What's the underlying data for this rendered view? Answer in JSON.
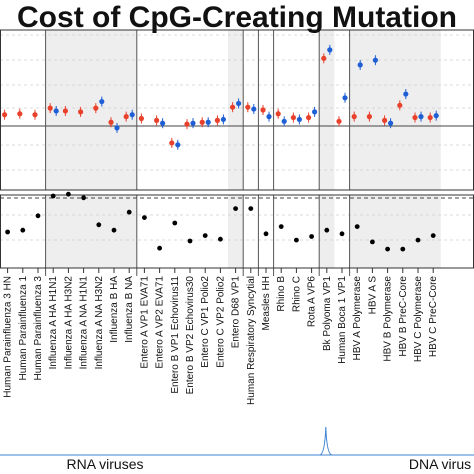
{
  "chart_data": {
    "type": "scatter",
    "title": "Cost of CpG-Creating Mutation",
    "colors": {
      "red": "#e8402a",
      "blue": "#1f5fd6",
      "black": "#000000",
      "shade": "#eeeeee",
      "grid": "#cfcfcf",
      "density": "#3b83d1"
    },
    "categories": [
      "Human Parainfluenza 3 HN",
      "Human Parainfluenza 1",
      "Human Parainfluenza 3",
      "Influenza A HA H1N1",
      "Influenza A HA H3N2",
      "Influenza A NA H1N1",
      "Influenza A NA H3N2",
      "Influenza B HA",
      "Influenza B NA",
      "Entero A VP1 EVA71",
      "Entero A VP2 EVA71",
      "Entero B VP1 Echovirus11",
      "Entero B VP2 Echovirus30",
      "Entero C VP1 Polio2",
      "Entero C VP2 Polio2",
      "Entero D68 VP1",
      "Human Respiratory Syncytial",
      "Measles HH",
      "Rhino B",
      "Rhino C",
      "Rota A VP6",
      "Bk Polyoma VP1",
      "Human Boca 1 VP1",
      "HBV A Polymerase",
      "HBV A S",
      "HBV B Polymerase",
      "HBV B PreC-Core",
      "HBV C Polymerase",
      "HBV C PreC-Core"
    ],
    "shaded_groups": [
      [
        3,
        8
      ],
      [
        15,
        15
      ],
      [
        21,
        21
      ],
      [
        23,
        28
      ]
    ],
    "group_boundaries": [
      3,
      9,
      16,
      17,
      18,
      21,
      23
    ],
    "panel_top": {
      "reference_value": 0,
      "red_values": [
        1.2,
        1.3,
        1.2,
        1.9,
        1.6,
        1.5,
        1.9,
        0.4,
        1.0,
        0.8,
        0.6,
        -1.8,
        0.2,
        0.4,
        0.6,
        2.0,
        2.0,
        1.7,
        1.3,
        0.9,
        0.9,
        7.2,
        0.5,
        1.0,
        1.0,
        0.6,
        2.2,
        0.9,
        0.9
      ],
      "blue_values": [
        null,
        null,
        null,
        1.6,
        null,
        null,
        2.6,
        -0.2,
        1.2,
        null,
        0.3,
        -2.0,
        0.3,
        0.4,
        0.7,
        2.4,
        1.8,
        1.0,
        0.5,
        0.7,
        1.5,
        8.1,
        3.0,
        6.5,
        7.0,
        0.3,
        3.4,
        1.0,
        1.1
      ]
    },
    "panel_bottom": {
      "values": [
        4.0,
        4.2,
        5.8,
        8.0,
        8.2,
        7.8,
        4.8,
        4.2,
        6.2,
        5.6,
        2.2,
        5.0,
        3.0,
        3.6,
        3.2,
        6.6,
        6.6,
        3.8,
        4.6,
        3.1,
        3.5,
        4.2,
        3.8,
        4.6,
        2.9,
        2.1,
        2.1,
        3.1,
        3.6
      ]
    },
    "density_peak_category": "Bk Polyoma VP1",
    "group_labels": [
      "RNA viruses",
      "DNA virus"
    ]
  }
}
